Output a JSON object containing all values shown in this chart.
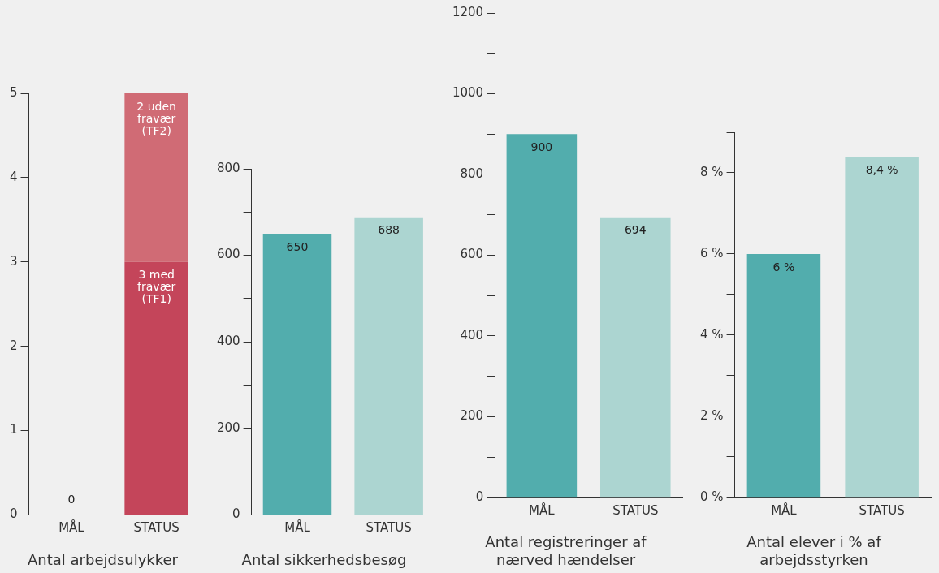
{
  "chart_data": [
    {
      "type": "bar",
      "title": "Antal arbejdsulykker",
      "categories": [
        "MÅL",
        "STATUS"
      ],
      "stacked": true,
      "series": [
        {
          "color": "#c4455a",
          "values": [
            0,
            3
          ],
          "value_labels": [
            "0",
            "3 med fravær (TF1)"
          ]
        },
        {
          "color": "#d06b75",
          "values": [
            0,
            2
          ],
          "value_labels": [
            null,
            "2 uden fravær (TF2)"
          ]
        }
      ],
      "ylim": [
        0,
        5
      ],
      "yticks": [
        0,
        1,
        2,
        3,
        4,
        5
      ],
      "grid": false,
      "legend": false
    },
    {
      "type": "bar",
      "title": "Antal sikkerhedsbesøg",
      "categories": [
        "MÅL",
        "STATUS"
      ],
      "colors": [
        "#52adad",
        "#acd5d1"
      ],
      "values": [
        650,
        688
      ],
      "data_labels": true,
      "ylim": [
        0,
        800
      ],
      "yticks": [
        0,
        {
          "value": 100,
          "label": null
        },
        200,
        {
          "value": 300,
          "label": null
        },
        400,
        {
          "value": 500,
          "label": null
        },
        600,
        {
          "value": 700,
          "label": null
        },
        800
      ],
      "grid": false,
      "legend": false
    },
    {
      "type": "bar",
      "title": "Antal registreringer af nærved hændelser",
      "categories": [
        "MÅL",
        "STATUS"
      ],
      "colors": [
        "#52adad",
        "#acd5d1"
      ],
      "values": [
        900,
        694
      ],
      "data_labels": true,
      "ylim": [
        0,
        1200
      ],
      "yticks": [
        0,
        {
          "value": 100,
          "label": null
        },
        200,
        {
          "value": 300,
          "label": null
        },
        400,
        {
          "value": 500,
          "label": null
        },
        600,
        {
          "value": 700,
          "label": null
        },
        800,
        {
          "value": 900,
          "label": null
        },
        1000,
        {
          "value": 1100,
          "label": null
        },
        1200
      ],
      "grid": false,
      "legend": false
    },
    {
      "type": "bar",
      "title": "Antal elever i % af arbejdsstyrken",
      "categories": [
        "MÅL",
        "STATUS"
      ],
      "colors": [
        "#52adad",
        "#acd5d1"
      ],
      "values": [
        6,
        8.4
      ],
      "value_labels": [
        "6 %",
        "8,4 %"
      ],
      "ylim": [
        0,
        9
      ],
      "yticks": [
        {
          "value": 0,
          "label": "0 %"
        },
        {
          "value": 1,
          "label": null
        },
        {
          "value": 2,
          "label": "2 %"
        },
        {
          "value": 3,
          "label": null
        },
        {
          "value": 4,
          "label": "4 %"
        },
        {
          "value": 5,
          "label": null
        },
        {
          "value": 6,
          "label": "6 %"
        },
        {
          "value": 7,
          "label": null
        },
        {
          "value": 8,
          "label": "8 %"
        },
        {
          "value": 9,
          "label": null
        }
      ],
      "grid": false,
      "legend": false
    }
  ]
}
